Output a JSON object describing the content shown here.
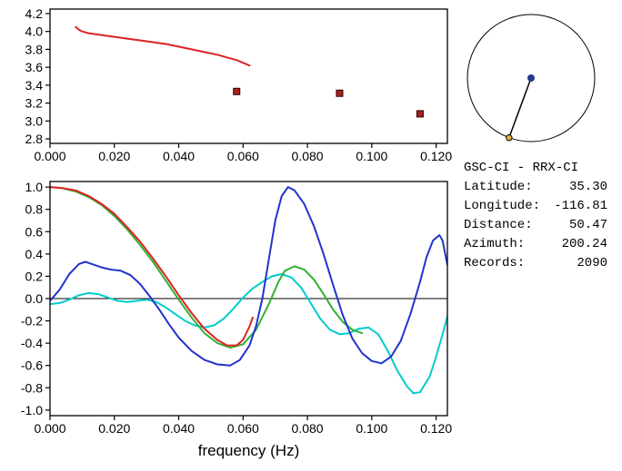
{
  "info_panel": {
    "title": "GSC-CI - RRX-CI",
    "fields": [
      {
        "label": "Latitude:",
        "value": "35.30"
      },
      {
        "label": "Longitude:",
        "value": "-116.81"
      },
      {
        "label": "Distance:",
        "value": "50.47"
      },
      {
        "label": "Azimuth:",
        "value": "200.24"
      },
      {
        "label": "Records:",
        "value": "2090"
      }
    ]
  },
  "azimuth_diagram": {
    "azimuth_deg": 200.24,
    "center_dot_color": "#223a8f",
    "station_dot_color": "#e0b840",
    "circle_color": "#000000"
  },
  "chart_data": [
    {
      "type": "line",
      "title": "",
      "xlabel": "",
      "ylabel": "",
      "xlim": [
        0,
        0.1235
      ],
      "ylim": [
        2.75,
        4.25
      ],
      "grid": false,
      "zero_line": false,
      "xticks": [
        {
          "v": 0.0,
          "label": "0.000"
        },
        {
          "v": 0.02,
          "label": "0.020"
        },
        {
          "v": 0.04,
          "label": "0.040"
        },
        {
          "v": 0.06,
          "label": "0.060"
        },
        {
          "v": 0.08,
          "label": "0.080"
        },
        {
          "v": 0.1,
          "label": "0.100"
        },
        {
          "v": 0.12,
          "label": "0.120"
        }
      ],
      "yticks": [
        {
          "v": 4.2,
          "label": "4.2"
        },
        {
          "v": 4.0,
          "label": "4.0"
        },
        {
          "v": 3.8,
          "label": "3.8"
        },
        {
          "v": 3.6,
          "label": "3.6"
        },
        {
          "v": 3.4,
          "label": "3.4"
        },
        {
          "v": 3.2,
          "label": "3.2"
        },
        {
          "v": 3.0,
          "label": "3.0"
        },
        {
          "v": 2.8,
          "label": "2.8"
        }
      ],
      "series": [
        {
          "name": "dispersion-curve",
          "type": "line",
          "color": "#dd2222",
          "points": [
            [
              0.008,
              4.05
            ],
            [
              0.009,
              4.02
            ],
            [
              0.01,
              4.0
            ],
            [
              0.012,
              3.98
            ],
            [
              0.014,
              3.97
            ],
            [
              0.016,
              3.96
            ],
            [
              0.018,
              3.95
            ],
            [
              0.02,
              3.94
            ],
            [
              0.024,
              3.92
            ],
            [
              0.028,
              3.9
            ],
            [
              0.032,
              3.88
            ],
            [
              0.036,
              3.86
            ],
            [
              0.04,
              3.83
            ],
            [
              0.044,
              3.8
            ],
            [
              0.048,
              3.77
            ],
            [
              0.052,
              3.74
            ],
            [
              0.056,
              3.7
            ],
            [
              0.058,
              3.68
            ],
            [
              0.06,
              3.65
            ],
            [
              0.062,
              3.62
            ]
          ]
        },
        {
          "name": "picked-point",
          "type": "scatter",
          "color": "#aa2020",
          "points": [
            [
              0.058,
              3.33
            ],
            [
              0.09,
              3.31
            ],
            [
              0.115,
              3.08
            ]
          ]
        }
      ]
    },
    {
      "type": "line",
      "title": "",
      "xlabel": "frequency (Hz)",
      "ylabel": "",
      "xlim": [
        0,
        0.1235
      ],
      "ylim": [
        -1.05,
        1.05
      ],
      "grid": false,
      "zero_line": true,
      "xticks": [
        {
          "v": 0.0,
          "label": "0.000"
        },
        {
          "v": 0.02,
          "label": "0.020"
        },
        {
          "v": 0.04,
          "label": "0.040"
        },
        {
          "v": 0.06,
          "label": "0.060"
        },
        {
          "v": 0.08,
          "label": "0.080"
        },
        {
          "v": 0.1,
          "label": "0.100"
        },
        {
          "v": 0.12,
          "label": "0.120"
        }
      ],
      "yticks": [
        {
          "v": 1.0,
          "label": "1.0"
        },
        {
          "v": 0.8,
          "label": "0.8"
        },
        {
          "v": 0.6,
          "label": "0.6"
        },
        {
          "v": 0.4,
          "label": "0.4"
        },
        {
          "v": 0.2,
          "label": "0.2"
        },
        {
          "v": 0.0,
          "label": "0.0"
        },
        {
          "v": -0.2,
          "label": "-0.2"
        },
        {
          "v": -0.4,
          "label": "-0.4"
        },
        {
          "v": -0.6,
          "label": "-0.6"
        },
        {
          "v": -0.8,
          "label": "-0.8"
        },
        {
          "v": -1.0,
          "label": "-1.0"
        }
      ],
      "series": [
        {
          "name": "correlation-cyan",
          "type": "line",
          "color": "#00cccc",
          "points": [
            [
              0.0,
              -0.05
            ],
            [
              0.003,
              -0.04
            ],
            [
              0.006,
              -0.01
            ],
            [
              0.009,
              0.03
            ],
            [
              0.012,
              0.05
            ],
            [
              0.015,
              0.04
            ],
            [
              0.018,
              0.01
            ],
            [
              0.021,
              -0.02
            ],
            [
              0.024,
              -0.03
            ],
            [
              0.027,
              -0.02
            ],
            [
              0.03,
              -0.01
            ],
            [
              0.033,
              -0.03
            ],
            [
              0.036,
              -0.08
            ],
            [
              0.039,
              -0.14
            ],
            [
              0.042,
              -0.2
            ],
            [
              0.045,
              -0.24
            ],
            [
              0.048,
              -0.26
            ],
            [
              0.051,
              -0.24
            ],
            [
              0.054,
              -0.18
            ],
            [
              0.057,
              -0.09
            ],
            [
              0.06,
              0.01
            ],
            [
              0.063,
              0.09
            ],
            [
              0.066,
              0.15
            ],
            [
              0.069,
              0.2
            ],
            [
              0.072,
              0.22
            ],
            [
              0.075,
              0.19
            ],
            [
              0.078,
              0.1
            ],
            [
              0.081,
              -0.04
            ],
            [
              0.084,
              -0.18
            ],
            [
              0.087,
              -0.28
            ],
            [
              0.09,
              -0.32
            ],
            [
              0.093,
              -0.31
            ],
            [
              0.096,
              -0.27
            ],
            [
              0.099,
              -0.26
            ],
            [
              0.102,
              -0.32
            ],
            [
              0.105,
              -0.47
            ],
            [
              0.108,
              -0.65
            ],
            [
              0.111,
              -0.79
            ],
            [
              0.113,
              -0.85
            ],
            [
              0.115,
              -0.84
            ],
            [
              0.118,
              -0.7
            ],
            [
              0.12,
              -0.52
            ],
            [
              0.122,
              -0.32
            ],
            [
              0.1235,
              -0.16
            ]
          ]
        },
        {
          "name": "correlation-green",
          "type": "line",
          "color": "#33b033",
          "points": [
            [
              0.0,
              1.0
            ],
            [
              0.004,
              0.99
            ],
            [
              0.008,
              0.96
            ],
            [
              0.012,
              0.91
            ],
            [
              0.016,
              0.84
            ],
            [
              0.02,
              0.74
            ],
            [
              0.024,
              0.62
            ],
            [
              0.028,
              0.48
            ],
            [
              0.032,
              0.33
            ],
            [
              0.036,
              0.16
            ],
            [
              0.04,
              -0.01
            ],
            [
              0.044,
              -0.17
            ],
            [
              0.048,
              -0.31
            ],
            [
              0.052,
              -0.4
            ],
            [
              0.056,
              -0.44
            ],
            [
              0.06,
              -0.41
            ],
            [
              0.064,
              -0.28
            ],
            [
              0.068,
              -0.05
            ],
            [
              0.071,
              0.15
            ],
            [
              0.073,
              0.25
            ],
            [
              0.076,
              0.29
            ],
            [
              0.079,
              0.26
            ],
            [
              0.082,
              0.17
            ],
            [
              0.085,
              0.04
            ],
            [
              0.088,
              -0.1
            ],
            [
              0.091,
              -0.21
            ],
            [
              0.094,
              -0.28
            ],
            [
              0.097,
              -0.31
            ]
          ]
        },
        {
          "name": "correlation-blue",
          "type": "line",
          "color": "#2233cc",
          "points": [
            [
              0.0,
              -0.02
            ],
            [
              0.003,
              0.08
            ],
            [
              0.006,
              0.22
            ],
            [
              0.009,
              0.31
            ],
            [
              0.011,
              0.33
            ],
            [
              0.013,
              0.31
            ],
            [
              0.016,
              0.28
            ],
            [
              0.019,
              0.26
            ],
            [
              0.022,
              0.25
            ],
            [
              0.025,
              0.21
            ],
            [
              0.028,
              0.13
            ],
            [
              0.031,
              0.02
            ],
            [
              0.034,
              -0.1
            ],
            [
              0.037,
              -0.23
            ],
            [
              0.04,
              -0.35
            ],
            [
              0.044,
              -0.47
            ],
            [
              0.048,
              -0.55
            ],
            [
              0.052,
              -0.59
            ],
            [
              0.056,
              -0.6
            ],
            [
              0.059,
              -0.55
            ],
            [
              0.062,
              -0.42
            ],
            [
              0.064,
              -0.25
            ],
            [
              0.066,
              0.0
            ],
            [
              0.068,
              0.35
            ],
            [
              0.07,
              0.7
            ],
            [
              0.072,
              0.92
            ],
            [
              0.074,
              1.0
            ],
            [
              0.076,
              0.97
            ],
            [
              0.079,
              0.85
            ],
            [
              0.082,
              0.65
            ],
            [
              0.085,
              0.4
            ],
            [
              0.088,
              0.12
            ],
            [
              0.091,
              -0.15
            ],
            [
              0.094,
              -0.36
            ],
            [
              0.097,
              -0.49
            ],
            [
              0.1,
              -0.56
            ],
            [
              0.103,
              -0.58
            ],
            [
              0.106,
              -0.52
            ],
            [
              0.109,
              -0.38
            ],
            [
              0.112,
              -0.14
            ],
            [
              0.115,
              0.15
            ],
            [
              0.117,
              0.37
            ],
            [
              0.119,
              0.52
            ],
            [
              0.121,
              0.57
            ],
            [
              0.122,
              0.52
            ],
            [
              0.1235,
              0.3
            ]
          ]
        },
        {
          "name": "correlation-red",
          "type": "line",
          "color": "#dd2222",
          "points": [
            [
              0.0,
              1.0
            ],
            [
              0.004,
              0.99
            ],
            [
              0.008,
              0.97
            ],
            [
              0.012,
              0.92
            ],
            [
              0.016,
              0.85
            ],
            [
              0.02,
              0.76
            ],
            [
              0.024,
              0.64
            ],
            [
              0.028,
              0.51
            ],
            [
              0.032,
              0.36
            ],
            [
              0.036,
              0.2
            ],
            [
              0.04,
              0.03
            ],
            [
              0.044,
              -0.13
            ],
            [
              0.048,
              -0.27
            ],
            [
              0.052,
              -0.37
            ],
            [
              0.055,
              -0.42
            ],
            [
              0.058,
              -0.42
            ],
            [
              0.06,
              -0.37
            ],
            [
              0.062,
              -0.25
            ],
            [
              0.063,
              -0.17
            ]
          ]
        }
      ]
    }
  ]
}
